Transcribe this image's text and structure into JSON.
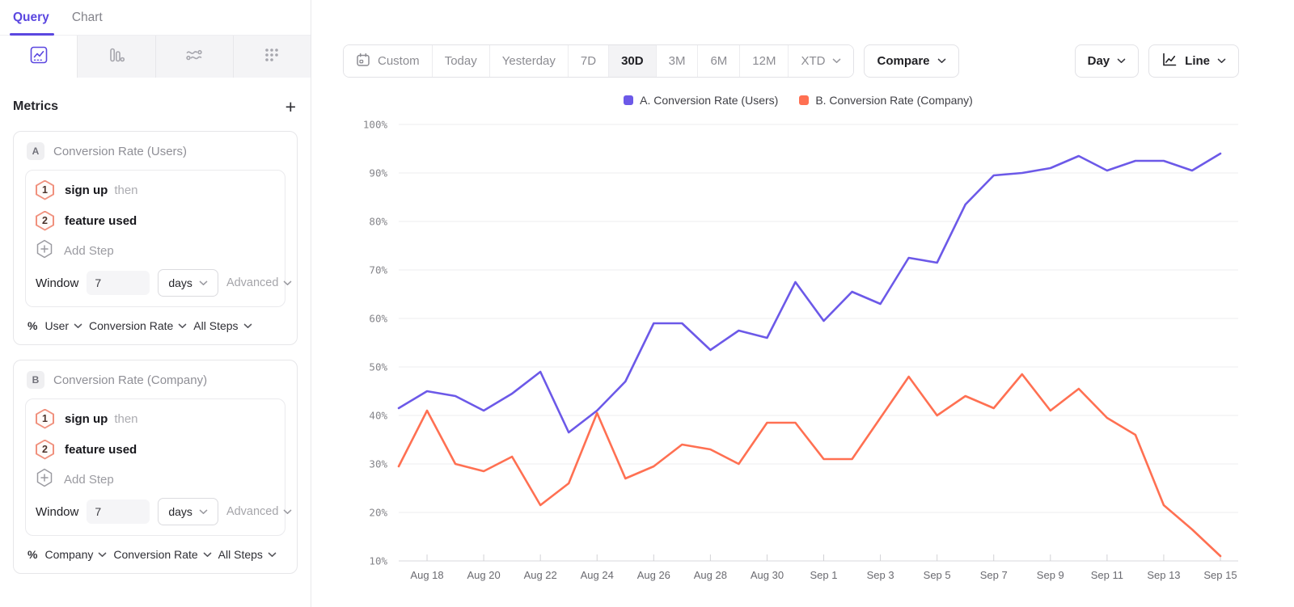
{
  "sidebar": {
    "tabs": [
      {
        "label": "Query"
      },
      {
        "label": "Chart"
      }
    ],
    "view_icons": [
      "insights-line-chart",
      "bar-chart",
      "flows",
      "retention-dots"
    ],
    "metrics_header": {
      "title": "Metrics",
      "add_label": "+"
    },
    "metrics": [
      {
        "id": "A",
        "title": "Conversion Rate (Users)",
        "steps": [
          {
            "num": "1",
            "event": "sign up",
            "suffix": "then"
          },
          {
            "num": "2",
            "event": "feature used",
            "suffix": ""
          }
        ],
        "add_step_label": "Add Step",
        "window": {
          "label": "Window",
          "value": "7",
          "unit": "days",
          "advanced_label": "Advanced"
        },
        "measure": {
          "prefix": "%",
          "entity": "User",
          "metric": "Conversion Rate",
          "steps": "All Steps"
        }
      },
      {
        "id": "B",
        "title": "Conversion Rate (Company)",
        "steps": [
          {
            "num": "1",
            "event": "sign up",
            "suffix": "then"
          },
          {
            "num": "2",
            "event": "feature used",
            "suffix": ""
          }
        ],
        "add_step_label": "Add Step",
        "window": {
          "label": "Window",
          "value": "7",
          "unit": "days",
          "advanced_label": "Advanced"
        },
        "measure": {
          "prefix": "%",
          "entity": "Company",
          "metric": "Conversion Rate",
          "steps": "All Steps"
        }
      }
    ]
  },
  "toolbar": {
    "date_ranges": [
      "Custom",
      "Today",
      "Yesterday",
      "7D",
      "30D",
      "3M",
      "6M",
      "12M",
      "XTD"
    ],
    "active_range": "30D",
    "compare_label": "Compare",
    "granularity_label": "Day",
    "chart_type_label": "Line"
  },
  "legend": [
    {
      "label": "A. Conversion Rate (Users)",
      "color": "#6C59E8"
    },
    {
      "label": "B. Conversion Rate (Company)",
      "color": "#FF7052"
    }
  ],
  "chart_data": {
    "type": "line",
    "title": "",
    "xlabel": "",
    "ylabel": "",
    "ylim": [
      10,
      100
    ],
    "y_ticks": [
      "10%",
      "20%",
      "30%",
      "40%",
      "50%",
      "60%",
      "70%",
      "80%",
      "90%",
      "100%"
    ],
    "grid": true,
    "legend_position": "top",
    "x_tick_every": 2,
    "x": [
      "Aug 17",
      "Aug 18",
      "Aug 19",
      "Aug 20",
      "Aug 21",
      "Aug 22",
      "Aug 23",
      "Aug 24",
      "Aug 25",
      "Aug 26",
      "Aug 27",
      "Aug 28",
      "Aug 29",
      "Aug 30",
      "Aug 31",
      "Sep 1",
      "Sep 2",
      "Sep 3",
      "Sep 4",
      "Sep 5",
      "Sep 6",
      "Sep 7",
      "Sep 8",
      "Sep 9",
      "Sep 10",
      "Sep 11",
      "Sep 12",
      "Sep 13",
      "Sep 14",
      "Sep 15"
    ],
    "series": [
      {
        "name": "A. Conversion Rate (Users)",
        "color": "#6C59E8",
        "values": [
          41.5,
          45,
          44,
          41,
          44.5,
          49,
          36.5,
          41,
          47,
          59,
          59,
          53.5,
          57.5,
          56,
          67.5,
          59.5,
          65.5,
          63,
          72.5,
          71.5,
          83.5,
          89.5,
          90,
          91,
          93.5,
          90.5,
          92.5,
          92.5,
          90.5,
          94
        ]
      },
      {
        "name": "B. Conversion Rate (Company)",
        "color": "#FF7052",
        "values": [
          29.5,
          41,
          30,
          28.5,
          31.5,
          21.5,
          26,
          40.5,
          27,
          29.5,
          34,
          33,
          30,
          38.5,
          38.5,
          31,
          31,
          39.5,
          48,
          40,
          44,
          41.5,
          48.5,
          41,
          45.5,
          39.5,
          36,
          21.5,
          16.5,
          11
        ]
      }
    ]
  }
}
